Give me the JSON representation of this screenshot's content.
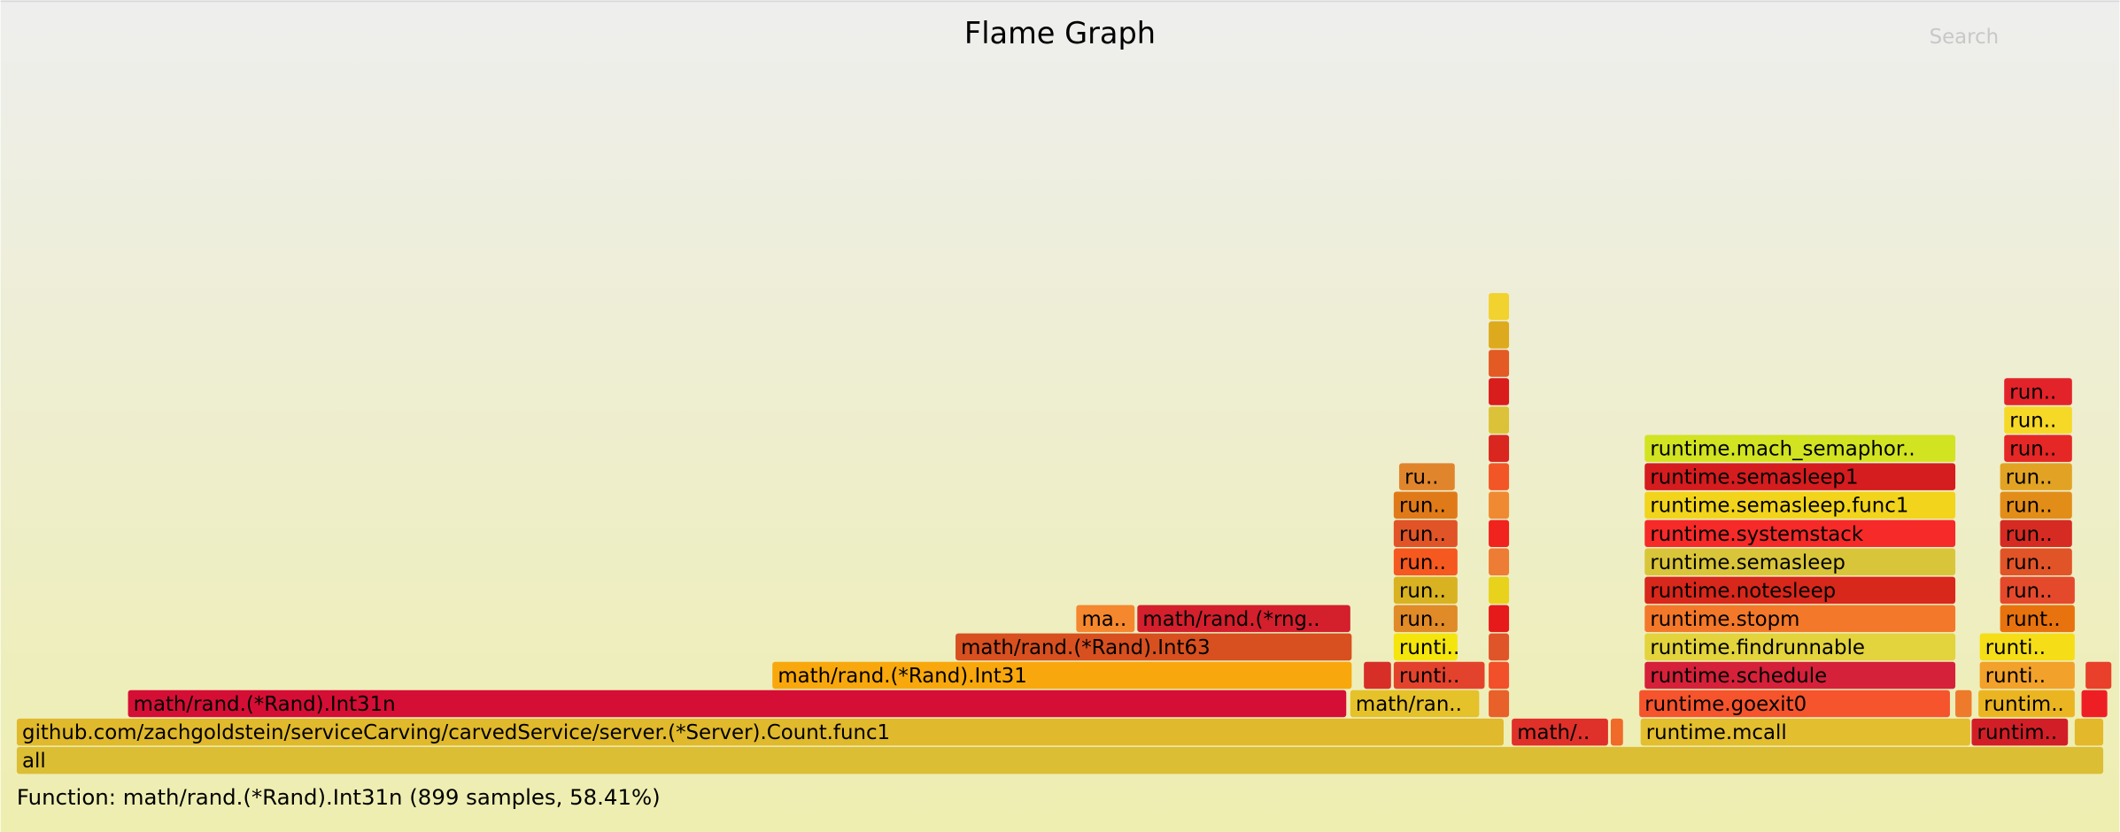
{
  "chart_data": {
    "type": "flame",
    "title": "Flame Graph",
    "search": "Search",
    "details": "Function: math/rand.(*Rand).Int31n (899 samples, 58.41%)",
    "xlim": [
      0,
      1539
    ],
    "frames": [
      {
        "name": "all",
        "depth": 0,
        "start": 0,
        "samples": 1539,
        "color": "#dcbe35"
      },
      {
        "name": "github.com/zachgoldstein/serviceCarving/carvedService/server.(*Server).Count.func1",
        "depth": 1,
        "start": 0,
        "samples": 1097,
        "color": "#e0b92c"
      },
      {
        "name": "math/..",
        "depth": 1,
        "start": 1102,
        "samples": 72,
        "color": "#e0302a"
      },
      {
        "name": null,
        "depth": 1,
        "start": 1175,
        "samples": 10,
        "color": "#f06a2a"
      },
      {
        "name": "runtime.mcall",
        "depth": 1,
        "start": 1197,
        "samples": 244,
        "color": "#e3be2f"
      },
      {
        "name": "runtim..",
        "depth": 1,
        "start": 1441,
        "samples": 72,
        "color": "#d21f27"
      },
      {
        "name": null,
        "depth": 1,
        "start": 1517,
        "samples": 22,
        "color": "#e4b82b"
      },
      {
        "name": "math/rand.(*Rand).Int31n",
        "depth": 2,
        "start": 82,
        "samples": 899,
        "color": "#d50e35"
      },
      {
        "name": "math/ran..",
        "depth": 2,
        "start": 983,
        "samples": 96,
        "color": "#e5c12a"
      },
      {
        "name": null,
        "depth": 2,
        "start": 1085,
        "samples": 16,
        "color": "#e8602a"
      },
      {
        "name": "runtime.goexit0",
        "depth": 2,
        "start": 1196,
        "samples": 230,
        "color": "#f5542d"
      },
      {
        "name": null,
        "depth": 2,
        "start": 1429,
        "samples": 13,
        "color": "#ee7a2c"
      },
      {
        "name": "runtim..",
        "depth": 2,
        "start": 1446,
        "samples": 72,
        "color": "#ebb522"
      },
      {
        "name": null,
        "depth": 2,
        "start": 1522,
        "samples": 20,
        "color": "#ee1f24"
      },
      {
        "name": "math/rand.(*Rand).Int31",
        "depth": 3,
        "start": 557,
        "samples": 428,
        "color": "#f8a80d"
      },
      {
        "name": null,
        "depth": 3,
        "start": 993,
        "samples": 21,
        "color": "#d72f28"
      },
      {
        "name": "runti..",
        "depth": 3,
        "start": 1015,
        "samples": 68,
        "color": "#e3432c"
      },
      {
        "name": null,
        "depth": 3,
        "start": 1085,
        "samples": 16,
        "color": "#f2502a"
      },
      {
        "name": "runtime.schedule",
        "depth": 3,
        "start": 1200,
        "samples": 230,
        "color": "#d5213a"
      },
      {
        "name": "runti..",
        "depth": 3,
        "start": 1447,
        "samples": 71,
        "color": "#f2a12a"
      },
      {
        "name": null,
        "depth": 3,
        "start": 1525,
        "samples": 20,
        "color": "#e8402b"
      },
      {
        "name": "math/rand.(*Rand).Int63",
        "depth": 4,
        "start": 692,
        "samples": 293,
        "color": "#d8501f"
      },
      {
        "name": "runti..",
        "depth": 4,
        "start": 1015,
        "samples": 48,
        "color": "#f4e50c"
      },
      {
        "name": null,
        "depth": 4,
        "start": 1085,
        "samples": 16,
        "color": "#e0542a"
      },
      {
        "name": "runtime.findrunnable",
        "depth": 4,
        "start": 1200,
        "samples": 230,
        "color": "#e3d33c"
      },
      {
        "name": "runti..",
        "depth": 4,
        "start": 1447,
        "samples": 71,
        "color": "#f5de17"
      },
      {
        "name": "ma..",
        "depth": 5,
        "start": 781,
        "samples": 44,
        "color": "#f5872e"
      },
      {
        "name": "math/rand.(*rng..",
        "depth": 5,
        "start": 826,
        "samples": 158,
        "color": "#d41f2d"
      },
      {
        "name": "run..",
        "depth": 5,
        "start": 1015,
        "samples": 48,
        "color": "#e08a28"
      },
      {
        "name": null,
        "depth": 5,
        "start": 1085,
        "samples": 16,
        "color": "#e61a1a"
      },
      {
        "name": "runtime.stopm",
        "depth": 5,
        "start": 1200,
        "samples": 230,
        "color": "#f4782a"
      },
      {
        "name": "runt..",
        "depth": 5,
        "start": 1462,
        "samples": 56,
        "color": "#e8720e"
      },
      {
        "name": "run..",
        "depth": 6,
        "start": 1015,
        "samples": 48,
        "color": "#d8b221"
      },
      {
        "name": null,
        "depth": 6,
        "start": 1085,
        "samples": 16,
        "color": "#e8d21c"
      },
      {
        "name": "runtime.notesleep",
        "depth": 6,
        "start": 1200,
        "samples": 230,
        "color": "#d8271b"
      },
      {
        "name": "run..",
        "depth": 6,
        "start": 1462,
        "samples": 56,
        "color": "#e4492c"
      },
      {
        "name": "run..",
        "depth": 7,
        "start": 1015,
        "samples": 48,
        "color": "#f5591f"
      },
      {
        "name": null,
        "depth": 7,
        "start": 1085,
        "samples": 16,
        "color": "#ed7c34"
      },
      {
        "name": "runtime.semasleep",
        "depth": 7,
        "start": 1200,
        "samples": 230,
        "color": "#d9c53a"
      },
      {
        "name": "run..",
        "depth": 7,
        "start": 1462,
        "samples": 54,
        "color": "#e15428"
      },
      {
        "name": "run..",
        "depth": 8,
        "start": 1015,
        "samples": 48,
        "color": "#e05427"
      },
      {
        "name": null,
        "depth": 8,
        "start": 1085,
        "samples": 16,
        "color": "#f0231e"
      },
      {
        "name": "runtime.systemstack",
        "depth": 8,
        "start": 1200,
        "samples": 230,
        "color": "#f52a29"
      },
      {
        "name": "run..",
        "depth": 8,
        "start": 1462,
        "samples": 54,
        "color": "#d62b22"
      },
      {
        "name": "run..",
        "depth": 9,
        "start": 1015,
        "samples": 48,
        "color": "#e07a19"
      },
      {
        "name": null,
        "depth": 9,
        "start": 1085,
        "samples": 16,
        "color": "#f08a32"
      },
      {
        "name": "runtime.semasleep.func1",
        "depth": 9,
        "start": 1200,
        "samples": 230,
        "color": "#f1d41b"
      },
      {
        "name": "run..",
        "depth": 9,
        "start": 1462,
        "samples": 54,
        "color": "#e38d19"
      },
      {
        "name": "ru..",
        "depth": 10,
        "start": 1019,
        "samples": 42,
        "color": "#e1852d"
      },
      {
        "name": null,
        "depth": 10,
        "start": 1085,
        "samples": 16,
        "color": "#f25626"
      },
      {
        "name": "runtime.semasleep1",
        "depth": 10,
        "start": 1200,
        "samples": 230,
        "color": "#d51c1f"
      },
      {
        "name": "run..",
        "depth": 10,
        "start": 1462,
        "samples": 54,
        "color": "#e2a324"
      },
      {
        "name": null,
        "depth": 11,
        "start": 1085,
        "samples": 16,
        "color": "#d9261f"
      },
      {
        "name": "runtime.mach_semaphor..",
        "depth": 11,
        "start": 1200,
        "samples": 230,
        "color": "#d2e322"
      },
      {
        "name": "run..",
        "depth": 11,
        "start": 1465,
        "samples": 51,
        "color": "#e52725"
      },
      {
        "name": null,
        "depth": 12,
        "start": 1085,
        "samples": 16,
        "color": "#dcc238"
      },
      {
        "name": "run..",
        "depth": 12,
        "start": 1465,
        "samples": 51,
        "color": "#f6d827"
      },
      {
        "name": null,
        "depth": 13,
        "start": 1085,
        "samples": 16,
        "color": "#d91c1c"
      },
      {
        "name": "run..",
        "depth": 13,
        "start": 1465,
        "samples": 51,
        "color": "#e3232a"
      },
      {
        "name": null,
        "depth": 14,
        "start": 1085,
        "samples": 16,
        "color": "#e35a24"
      },
      {
        "name": null,
        "depth": 15,
        "start": 1085,
        "samples": 16,
        "color": "#dcaa1c"
      },
      {
        "name": null,
        "depth": 16,
        "start": 1085,
        "samples": 16,
        "color": "#f2d22e"
      }
    ]
  }
}
